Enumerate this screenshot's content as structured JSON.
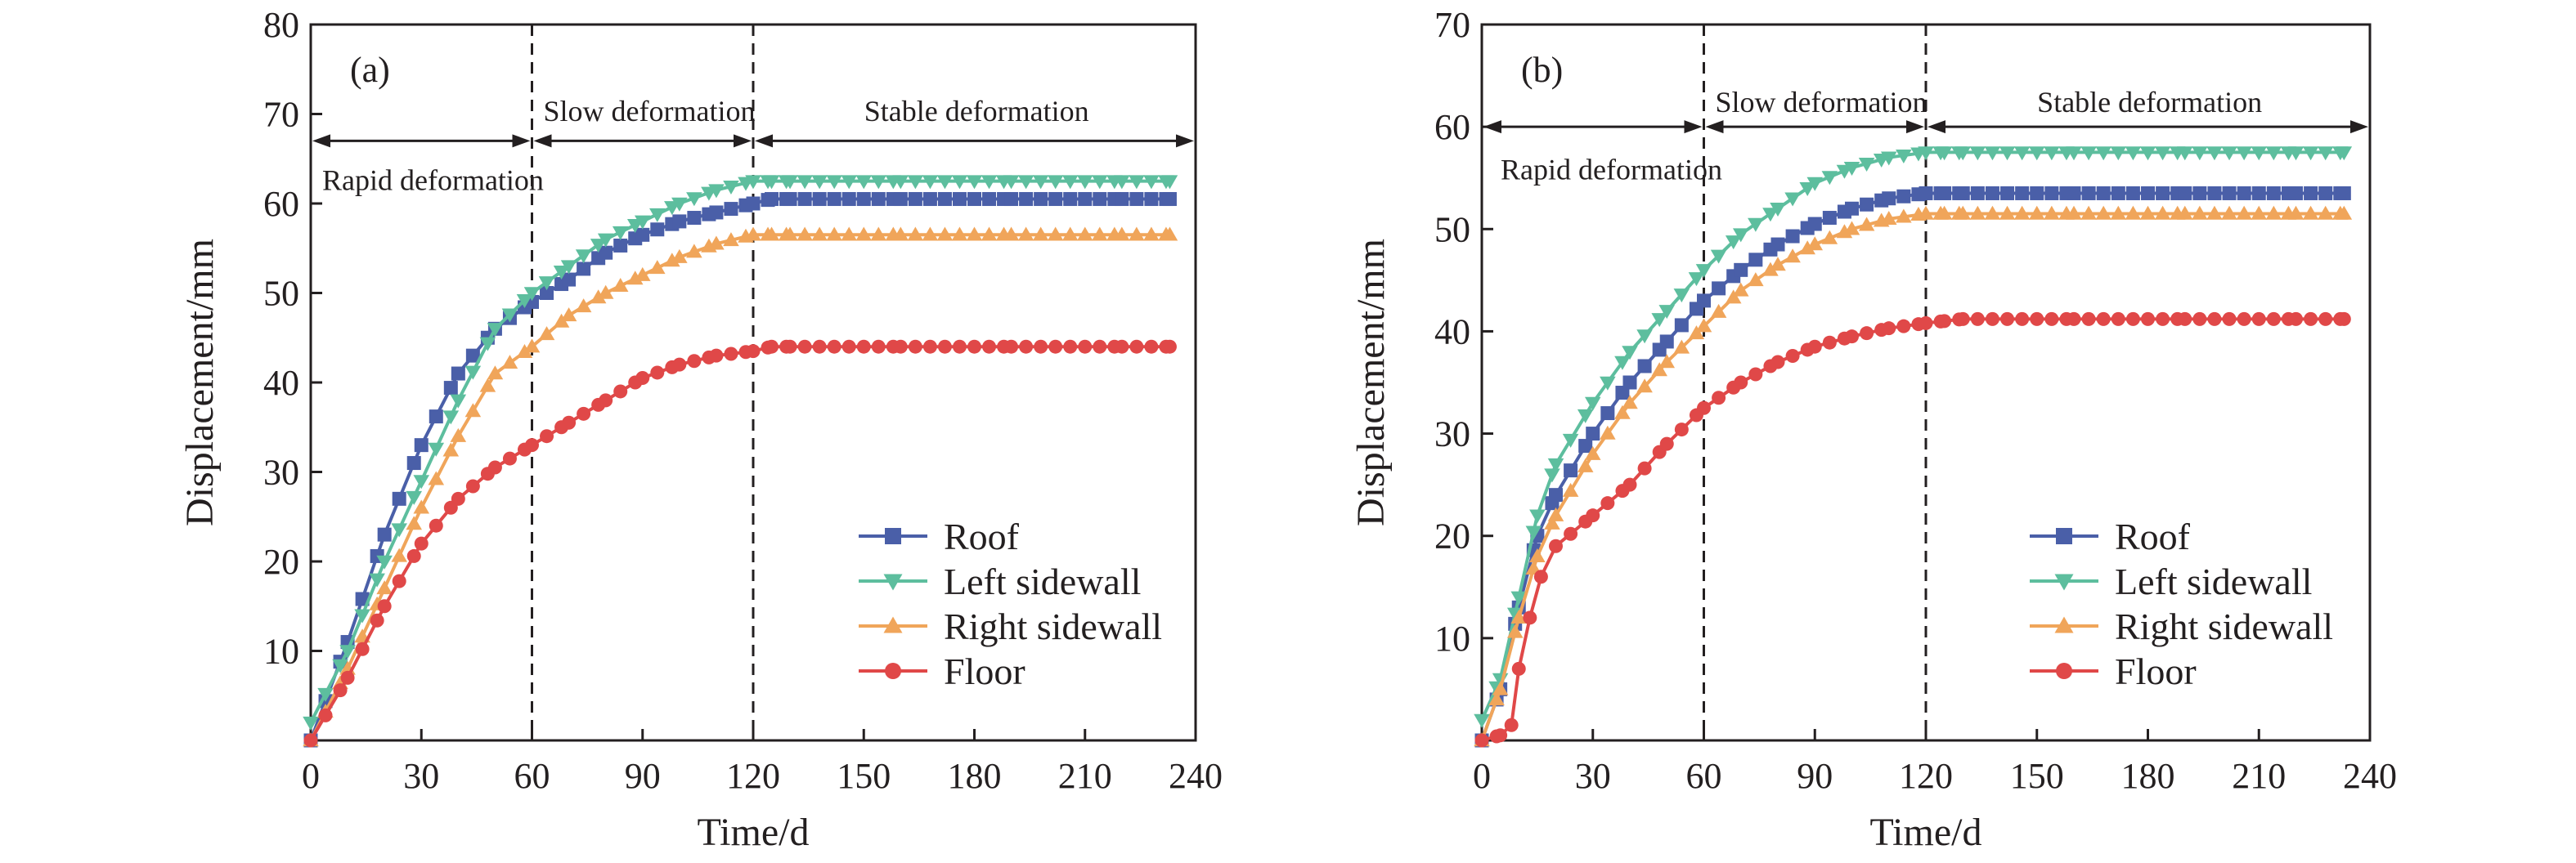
{
  "chart_data": [
    {
      "type": "line",
      "panel_label": "(a)",
      "xlabel": "Time/d",
      "ylabel": "Displacement/mm",
      "xlim": [
        0,
        240
      ],
      "ylim": [
        0,
        80
      ],
      "xticks": [
        0,
        30,
        60,
        90,
        120,
        150,
        180,
        210,
        240
      ],
      "yticks": [
        10,
        20,
        30,
        40,
        50,
        60,
        70,
        80
      ],
      "grid": false,
      "legend_position": "bottom-right",
      "phase_boundaries": [
        60,
        120
      ],
      "phases": [
        {
          "label": "Rapid deformation",
          "from": 0,
          "to": 60,
          "text_x": 0,
          "text_y": 62.6
        },
        {
          "label": "Slow deformation",
          "from": 60,
          "to": 120,
          "text_x": 60,
          "text_y": 70.3
        },
        {
          "label": "Stable deformation",
          "from": 120,
          "to": 240,
          "text_x": 147,
          "text_y": 70.3
        }
      ],
      "arrow_y": 67,
      "series": [
        {
          "name": "Roof",
          "color": "#4a5fa8",
          "marker": "square",
          "x": [
            0,
            10,
            20,
            30,
            40,
            50,
            60,
            70,
            80,
            90,
            100,
            110,
            120,
            125,
            130,
            160,
            190,
            220,
            233
          ],
          "y": [
            0,
            11,
            23,
            33,
            41,
            46,
            49,
            51.5,
            54.5,
            56.5,
            58,
            59,
            60,
            60.5,
            60.5,
            60.5,
            60.5,
            60.5,
            60.5
          ]
        },
        {
          "name": "Left sidewall",
          "color": "#5dbe9e",
          "marker": "triangle-down",
          "x": [
            0,
            10,
            20,
            30,
            40,
            50,
            60,
            70,
            80,
            90,
            100,
            110,
            120,
            125,
            130,
            160,
            190,
            220,
            233
          ],
          "y": [
            2,
            10,
            20,
            29,
            38,
            46,
            50,
            53,
            56,
            58,
            60,
            61.5,
            62.5,
            62.5,
            62.5,
            62.5,
            62.5,
            62.5,
            62.5
          ]
        },
        {
          "name": "Right sidewall",
          "color": "#f0a55a",
          "marker": "triangle-up",
          "x": [
            0,
            10,
            20,
            30,
            40,
            50,
            60,
            70,
            80,
            90,
            100,
            110,
            120,
            125,
            130,
            160,
            190,
            220,
            233
          ],
          "y": [
            0,
            8,
            17,
            26,
            34,
            41,
            44,
            47.5,
            50,
            52,
            54,
            55.5,
            56.5,
            56.5,
            56.5,
            56.5,
            56.5,
            56.5,
            56.5
          ]
        },
        {
          "name": "Floor",
          "color": "#e04848",
          "marker": "circle",
          "x": [
            0,
            10,
            20,
            30,
            40,
            50,
            60,
            70,
            80,
            90,
            100,
            110,
            120,
            125,
            130,
            160,
            190,
            220,
            233
          ],
          "y": [
            0,
            7,
            15,
            22,
            27,
            30.5,
            33,
            35.5,
            38,
            40.5,
            42,
            43,
            43.5,
            44,
            44,
            44,
            44,
            44,
            44
          ]
        }
      ]
    },
    {
      "type": "line",
      "panel_label": "(b)",
      "xlabel": "Time/d",
      "ylabel": "Displacement/mm",
      "xlim": [
        0,
        240
      ],
      "ylim": [
        0,
        70
      ],
      "xticks": [
        0,
        30,
        60,
        90,
        120,
        150,
        180,
        210,
        240
      ],
      "yticks": [
        10,
        20,
        30,
        40,
        50,
        60,
        70
      ],
      "grid": false,
      "legend_position": "bottom-right",
      "phase_boundaries": [
        60,
        120
      ],
      "phases": [
        {
          "label": "Rapid deformation",
          "from": 0,
          "to": 60,
          "text_x": 2,
          "text_y": 55.8
        },
        {
          "label": "Slow deformation",
          "from": 60,
          "to": 120,
          "text_x": 60,
          "text_y": 62.4
        },
        {
          "label": "Stable deformation",
          "from": 120,
          "to": 240,
          "text_x": 147,
          "text_y": 62.4
        }
      ],
      "arrow_y": 60,
      "series": [
        {
          "name": "Roof",
          "color": "#4a5fa8",
          "marker": "square",
          "x": [
            0,
            5,
            10,
            15,
            20,
            30,
            40,
            50,
            60,
            70,
            80,
            90,
            100,
            110,
            120,
            125,
            130,
            160,
            190,
            220,
            233
          ],
          "y": [
            0,
            5,
            13,
            20,
            24,
            30,
            35,
            39,
            43,
            46,
            48.5,
            50.5,
            52,
            53,
            53.5,
            53.5,
            53.5,
            53.5,
            53.5,
            53.5,
            53.5
          ]
        },
        {
          "name": "Left sidewall",
          "color": "#5dbe9e",
          "marker": "triangle-down",
          "x": [
            0,
            5,
            10,
            15,
            20,
            30,
            40,
            50,
            60,
            70,
            80,
            90,
            100,
            110,
            120,
            125,
            130,
            160,
            190,
            220,
            233
          ],
          "y": [
            2,
            6,
            14,
            22,
            27,
            33,
            38,
            42,
            46,
            49.5,
            52,
            54.5,
            56,
            57,
            57.5,
            57.5,
            57.5,
            57.5,
            57.5,
            57.5,
            57.5
          ]
        },
        {
          "name": "Right sidewall",
          "color": "#f0a55a",
          "marker": "triangle-up",
          "x": [
            0,
            5,
            10,
            15,
            20,
            30,
            40,
            50,
            60,
            70,
            80,
            90,
            100,
            110,
            120,
            125,
            130,
            160,
            190,
            220,
            233
          ],
          "y": [
            0,
            5,
            12,
            18,
            22,
            28,
            33,
            37,
            40.5,
            44,
            46.5,
            48.5,
            50,
            51,
            51.5,
            51.5,
            51.5,
            51.5,
            51.5,
            51.5,
            51.5
          ]
        },
        {
          "name": "Floor",
          "color": "#e04848",
          "marker": "circle",
          "x": [
            0,
            5,
            8,
            10,
            13,
            16,
            20,
            30,
            40,
            50,
            60,
            70,
            80,
            90,
            100,
            110,
            120,
            125,
            130,
            160,
            190,
            220,
            233
          ],
          "y": [
            0,
            0.5,
            1.5,
            7,
            12,
            16,
            19,
            22,
            25,
            29,
            32.5,
            35,
            37,
            38.5,
            39.5,
            40.3,
            40.8,
            41,
            41.2,
            41.2,
            41.2,
            41.2,
            41.2
          ]
        }
      ]
    }
  ]
}
